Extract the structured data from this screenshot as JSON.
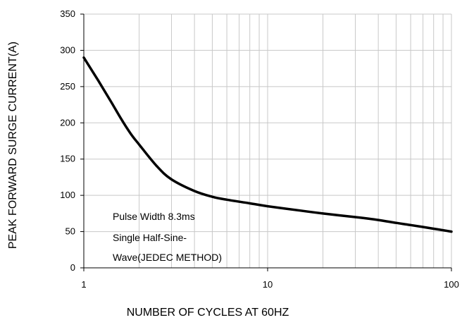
{
  "chart_data": {
    "type": "line",
    "title": "",
    "xlabel": "NUMBER OF CYCLES AT 60HZ",
    "ylabel": "PEAK FORWARD SURGE CURRENT(A)",
    "x_scale": "log",
    "xlim": [
      1,
      100
    ],
    "ylim": [
      0,
      350
    ],
    "x_tick_labels": [
      "1",
      "10",
      "100"
    ],
    "y_tick_labels": [
      "0",
      "50",
      "100",
      "150",
      "200",
      "250",
      "300",
      "350"
    ],
    "grid": true,
    "legend": "none",
    "annotation_lines": [
      "Pulse Width 8.3ms",
      "Single Half-Sine-",
      "Wave(JEDEC METHOD)"
    ],
    "series": [
      {
        "color": "#000000",
        "x": [
          1,
          1.2,
          1.4,
          1.6,
          1.8,
          2,
          2.5,
          3,
          4,
          5,
          6,
          8,
          10,
          15,
          20,
          30,
          40,
          50,
          60,
          80,
          100
        ],
        "y": [
          290,
          258,
          230,
          205,
          185,
          170,
          140,
          122,
          106,
          98,
          94,
          89,
          85,
          79,
          75,
          70,
          66,
          62,
          59,
          54,
          50
        ]
      }
    ]
  }
}
